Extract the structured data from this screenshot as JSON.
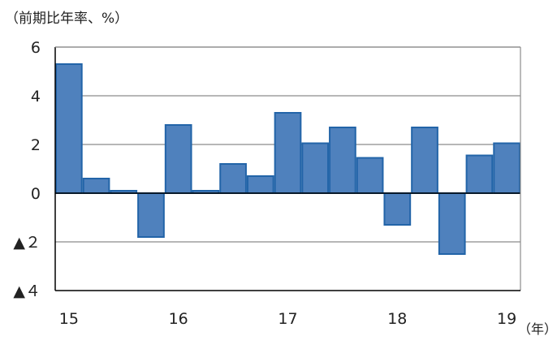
{
  "chart_data": {
    "type": "bar",
    "ylabel": "（前期比年率、%）",
    "xlabel": "（年）",
    "ylim": [
      -4,
      6
    ],
    "yticks": [
      {
        "value": 6,
        "label": "6"
      },
      {
        "value": 4,
        "label": "4"
      },
      {
        "value": 2,
        "label": "2"
      },
      {
        "value": 0,
        "label": "0"
      },
      {
        "value": -2,
        "label": "▲２"
      },
      {
        "value": -4,
        "label": "▲４"
      }
    ],
    "xticks": [
      {
        "index": 0,
        "label": "15"
      },
      {
        "index": 4,
        "label": "16"
      },
      {
        "index": 8,
        "label": "17"
      },
      {
        "index": 12,
        "label": "18"
      },
      {
        "index": 16,
        "label": "19"
      }
    ],
    "categories": [
      "2015Q1",
      "2015Q2",
      "2015Q3",
      "2015Q4",
      "2016Q1",
      "2016Q2",
      "2016Q3",
      "2016Q4",
      "2017Q1",
      "2017Q2",
      "2017Q3",
      "2017Q4",
      "2018Q1",
      "2018Q2",
      "2018Q3",
      "2018Q4",
      "2019Q1"
    ],
    "values": [
      5.3,
      0.6,
      0.1,
      -1.8,
      2.8,
      0.1,
      1.2,
      0.7,
      3.3,
      2.05,
      2.7,
      1.45,
      -1.3,
      2.7,
      -2.5,
      1.55,
      2.05
    ],
    "colors": {
      "bar_fill": "#4f81bd",
      "bar_stroke": "#2264a8",
      "grid": "#8c8c8c",
      "axis": "#000000"
    }
  }
}
